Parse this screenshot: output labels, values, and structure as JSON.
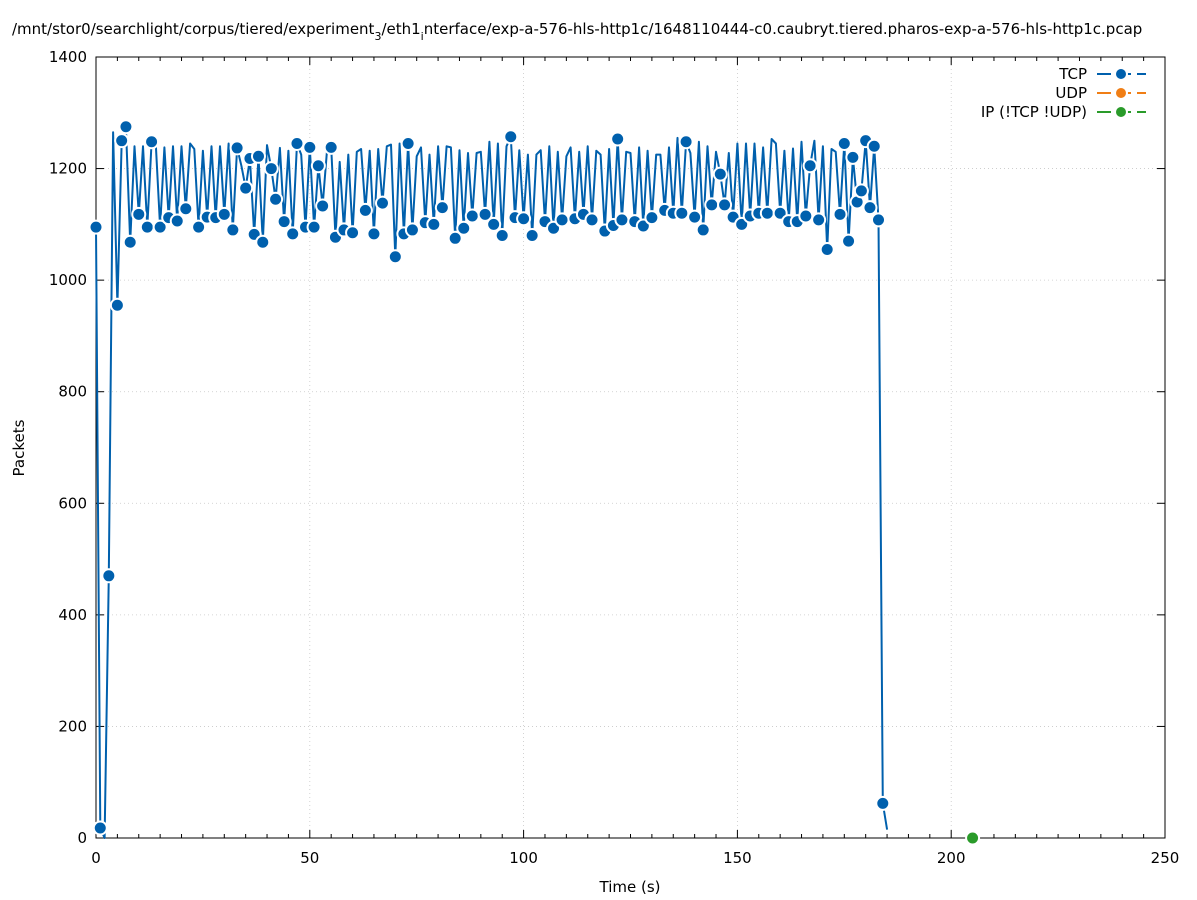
{
  "chart_data": {
    "type": "line",
    "title_main": "/mnt/stor0/searchlight/corpus/tiered/experiment",
    "title_sub1": "3",
    "title_mid": "/eth1",
    "title_sub2": "i",
    "title_rest": "nterface/exp-a-576-hls-http1c/1648110444-c0.caubryt.tiered.pharos-exp-a-576-hls-http1c.pcap",
    "xlabel": "Time (s)",
    "ylabel": "Packets",
    "xlim": [
      0,
      250
    ],
    "ylim": [
      0,
      1400
    ],
    "xticks": [
      "0",
      "50",
      "100",
      "150",
      "200",
      "250"
    ],
    "yticks": [
      "0",
      "200",
      "400",
      "600",
      "800",
      "1000",
      "1200",
      "1400"
    ],
    "grid": true,
    "legend_position": "top-right",
    "colors": {
      "TCP": "#0060ad",
      "UDP": "#f07e15",
      "IP": "#2a9b2a"
    },
    "series": [
      {
        "name": "TCP",
        "color": "#0060ad",
        "points": [
          [
            0,
            1095
          ],
          [
            1,
            18
          ],
          [
            2,
            0
          ],
          [
            3,
            470
          ],
          [
            4,
            1265
          ],
          [
            5,
            955
          ],
          [
            6,
            1250
          ],
          [
            7,
            1275
          ],
          [
            8,
            1068
          ],
          [
            9,
            1240
          ],
          [
            10,
            1118
          ],
          [
            11,
            1240
          ],
          [
            12,
            1095
          ],
          [
            13,
            1248
          ],
          [
            14,
            1240
          ],
          [
            15,
            1095
          ],
          [
            16,
            1238
          ],
          [
            17,
            1112
          ],
          [
            18,
            1240
          ],
          [
            19,
            1106
          ],
          [
            20,
            1240
          ],
          [
            21,
            1128
          ],
          [
            22,
            1245
          ],
          [
            23,
            1235
          ],
          [
            24,
            1095
          ],
          [
            25,
            1232
          ],
          [
            26,
            1113
          ],
          [
            27,
            1240
          ],
          [
            28,
            1112
          ],
          [
            29,
            1240
          ],
          [
            30,
            1118
          ],
          [
            31,
            1245
          ],
          [
            32,
            1090
          ],
          [
            33,
            1237
          ],
          [
            34,
            1205
          ],
          [
            35,
            1165
          ],
          [
            36,
            1218
          ],
          [
            37,
            1082
          ],
          [
            38,
            1222
          ],
          [
            39,
            1068
          ],
          [
            40,
            1242
          ],
          [
            41,
            1200
          ],
          [
            42,
            1145
          ],
          [
            43,
            1237
          ],
          [
            44,
            1105
          ],
          [
            45,
            1232
          ],
          [
            46,
            1083
          ],
          [
            47,
            1245
          ],
          [
            48,
            1225
          ],
          [
            49,
            1095
          ],
          [
            50,
            1238
          ],
          [
            51,
            1095
          ],
          [
            52,
            1205
          ],
          [
            53,
            1133
          ],
          [
            54,
            1230
          ],
          [
            55,
            1238
          ],
          [
            56,
            1077
          ],
          [
            57,
            1212
          ],
          [
            58,
            1090
          ],
          [
            59,
            1225
          ],
          [
            60,
            1085
          ],
          [
            61,
            1230
          ],
          [
            62,
            1235
          ],
          [
            63,
            1125
          ],
          [
            64,
            1232
          ],
          [
            65,
            1083
          ],
          [
            66,
            1235
          ],
          [
            67,
            1138
          ],
          [
            68,
            1240
          ],
          [
            69,
            1243
          ],
          [
            70,
            1042
          ],
          [
            71,
            1245
          ],
          [
            72,
            1083
          ],
          [
            73,
            1245
          ],
          [
            74,
            1090
          ],
          [
            75,
            1222
          ],
          [
            76,
            1238
          ],
          [
            77,
            1103
          ],
          [
            78,
            1225
          ],
          [
            79,
            1100
          ],
          [
            80,
            1240
          ],
          [
            81,
            1130
          ],
          [
            82,
            1240
          ],
          [
            83,
            1238
          ],
          [
            84,
            1075
          ],
          [
            85,
            1233
          ],
          [
            86,
            1093
          ],
          [
            87,
            1228
          ],
          [
            88,
            1115
          ],
          [
            89,
            1228
          ],
          [
            90,
            1230
          ],
          [
            91,
            1118
          ],
          [
            92,
            1248
          ],
          [
            93,
            1100
          ],
          [
            94,
            1245
          ],
          [
            95,
            1080
          ],
          [
            96,
            1240
          ],
          [
            97,
            1257
          ],
          [
            98,
            1112
          ],
          [
            99,
            1233
          ],
          [
            100,
            1110
          ],
          [
            101,
            1225
          ],
          [
            102,
            1080
          ],
          [
            103,
            1225
          ],
          [
            104,
            1233
          ],
          [
            105,
            1105
          ],
          [
            106,
            1240
          ],
          [
            107,
            1093
          ],
          [
            108,
            1230
          ],
          [
            109,
            1108
          ],
          [
            110,
            1222
          ],
          [
            111,
            1238
          ],
          [
            112,
            1110
          ],
          [
            113,
            1230
          ],
          [
            114,
            1118
          ],
          [
            115,
            1240
          ],
          [
            116,
            1108
          ],
          [
            117,
            1232
          ],
          [
            118,
            1225
          ],
          [
            119,
            1088
          ],
          [
            120,
            1235
          ],
          [
            121,
            1098
          ],
          [
            122,
            1253
          ],
          [
            123,
            1108
          ],
          [
            124,
            1230
          ],
          [
            125,
            1228
          ],
          [
            126,
            1105
          ],
          [
            127,
            1238
          ],
          [
            128,
            1097
          ],
          [
            129,
            1232
          ],
          [
            130,
            1112
          ],
          [
            131,
            1225
          ],
          [
            132,
            1225
          ],
          [
            133,
            1125
          ],
          [
            134,
            1238
          ],
          [
            135,
            1120
          ],
          [
            136,
            1255
          ],
          [
            137,
            1120
          ],
          [
            138,
            1248
          ],
          [
            139,
            1228
          ],
          [
            140,
            1113
          ],
          [
            141,
            1248
          ],
          [
            142,
            1090
          ],
          [
            143,
            1240
          ],
          [
            144,
            1135
          ],
          [
            145,
            1230
          ],
          [
            146,
            1190
          ],
          [
            147,
            1135
          ],
          [
            148,
            1228
          ],
          [
            149,
            1113
          ],
          [
            150,
            1245
          ],
          [
            151,
            1100
          ],
          [
            152,
            1245
          ],
          [
            153,
            1115
          ],
          [
            154,
            1245
          ],
          [
            155,
            1120
          ],
          [
            156,
            1238
          ],
          [
            157,
            1120
          ],
          [
            158,
            1253
          ],
          [
            159,
            1245
          ],
          [
            160,
            1120
          ],
          [
            161,
            1232
          ],
          [
            162,
            1105
          ],
          [
            163,
            1236
          ],
          [
            164,
            1105
          ],
          [
            165,
            1248
          ],
          [
            166,
            1115
          ],
          [
            167,
            1205
          ],
          [
            168,
            1250
          ],
          [
            169,
            1108
          ],
          [
            170,
            1240
          ],
          [
            171,
            1055
          ],
          [
            172,
            1235
          ],
          [
            173,
            1230
          ],
          [
            174,
            1118
          ],
          [
            175,
            1245
          ],
          [
            176,
            1070
          ],
          [
            177,
            1220
          ],
          [
            178,
            1140
          ],
          [
            179,
            1160
          ],
          [
            180,
            1250
          ],
          [
            181,
            1130
          ],
          [
            182,
            1240
          ],
          [
            183,
            1108
          ],
          [
            184,
            62
          ],
          [
            185,
            15
          ]
        ],
        "markers": [
          [
            0,
            1095
          ],
          [
            1,
            18
          ],
          [
            3,
            470
          ],
          [
            5,
            955
          ],
          [
            6,
            1250
          ],
          [
            7,
            1275
          ],
          [
            8,
            1068
          ],
          [
            10,
            1118
          ],
          [
            12,
            1095
          ],
          [
            13,
            1248
          ],
          [
            15,
            1095
          ],
          [
            17,
            1112
          ],
          [
            19,
            1106
          ],
          [
            21,
            1128
          ],
          [
            24,
            1095
          ],
          [
            26,
            1113
          ],
          [
            28,
            1112
          ],
          [
            30,
            1118
          ],
          [
            32,
            1090
          ],
          [
            33,
            1237
          ],
          [
            35,
            1165
          ],
          [
            36,
            1218
          ],
          [
            37,
            1082
          ],
          [
            38,
            1222
          ],
          [
            39,
            1068
          ],
          [
            41,
            1200
          ],
          [
            42,
            1145
          ],
          [
            44,
            1105
          ],
          [
            46,
            1083
          ],
          [
            47,
            1245
          ],
          [
            49,
            1095
          ],
          [
            50,
            1238
          ],
          [
            51,
            1095
          ],
          [
            52,
            1205
          ],
          [
            53,
            1133
          ],
          [
            55,
            1238
          ],
          [
            56,
            1077
          ],
          [
            58,
            1090
          ],
          [
            60,
            1085
          ],
          [
            63,
            1125
          ],
          [
            65,
            1083
          ],
          [
            67,
            1138
          ],
          [
            70,
            1042
          ],
          [
            72,
            1083
          ],
          [
            73,
            1245
          ],
          [
            74,
            1090
          ],
          [
            77,
            1103
          ],
          [
            79,
            1100
          ],
          [
            81,
            1130
          ],
          [
            84,
            1075
          ],
          [
            86,
            1093
          ],
          [
            88,
            1115
          ],
          [
            91,
            1118
          ],
          [
            93,
            1100
          ],
          [
            95,
            1080
          ],
          [
            97,
            1257
          ],
          [
            98,
            1112
          ],
          [
            100,
            1110
          ],
          [
            102,
            1080
          ],
          [
            105,
            1105
          ],
          [
            107,
            1093
          ],
          [
            109,
            1108
          ],
          [
            112,
            1110
          ],
          [
            114,
            1118
          ],
          [
            116,
            1108
          ],
          [
            119,
            1088
          ],
          [
            121,
            1098
          ],
          [
            122,
            1253
          ],
          [
            123,
            1108
          ],
          [
            126,
            1105
          ],
          [
            128,
            1097
          ],
          [
            130,
            1112
          ],
          [
            133,
            1125
          ],
          [
            135,
            1120
          ],
          [
            137,
            1120
          ],
          [
            138,
            1248
          ],
          [
            140,
            1113
          ],
          [
            142,
            1090
          ],
          [
            144,
            1135
          ],
          [
            146,
            1190
          ],
          [
            147,
            1135
          ],
          [
            149,
            1113
          ],
          [
            151,
            1100
          ],
          [
            153,
            1115
          ],
          [
            155,
            1120
          ],
          [
            157,
            1120
          ],
          [
            160,
            1120
          ],
          [
            162,
            1105
          ],
          [
            164,
            1105
          ],
          [
            166,
            1115
          ],
          [
            167,
            1205
          ],
          [
            169,
            1108
          ],
          [
            171,
            1055
          ],
          [
            174,
            1118
          ],
          [
            175,
            1245
          ],
          [
            176,
            1070
          ],
          [
            177,
            1220
          ],
          [
            178,
            1140
          ],
          [
            179,
            1160
          ],
          [
            180,
            1250
          ],
          [
            181,
            1130
          ],
          [
            182,
            1240
          ],
          [
            183,
            1108
          ],
          [
            184,
            62
          ]
        ]
      },
      {
        "name": "UDP",
        "color": "#f07e15",
        "points": []
      },
      {
        "name": "IP (!TCP  !UDP)",
        "color": "#2a9b2a",
        "points": [
          [
            205,
            0
          ]
        ]
      }
    ]
  }
}
